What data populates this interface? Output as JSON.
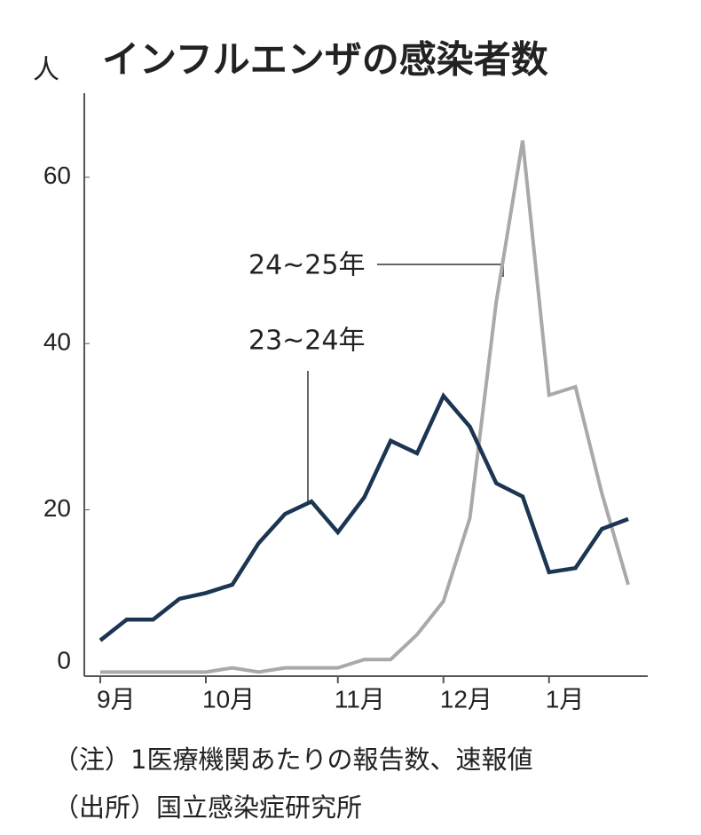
{
  "chart_data": {
    "type": "line",
    "title": "インフルエンザの感染者数",
    "ylabel": "人",
    "categories": [
      "9月",
      null,
      null,
      null,
      "10月",
      null,
      null,
      null,
      null,
      "11月",
      null,
      null,
      null,
      "12月",
      null,
      null,
      null,
      "1月",
      null,
      null,
      null
    ],
    "series": [
      {
        "name": "24~25年",
        "color": "#a9a9a9",
        "values": [
          0.5,
          0.5,
          0.5,
          0.5,
          0.5,
          1,
          0.5,
          1,
          1,
          1,
          2,
          2,
          5,
          9,
          19,
          45,
          64.4,
          33.8,
          34.8,
          22,
          11
        ]
      },
      {
        "name": "23~24年",
        "color": "#1b3552",
        "values": [
          4.3,
          6.8,
          6.8,
          9.3,
          10,
          11,
          16,
          19.5,
          21,
          17.3,
          21.5,
          28.3,
          26.8,
          33.7,
          30,
          23.2,
          21.6,
          12.5,
          13,
          17.7,
          18.9
        ]
      }
    ],
    "ylim": [
      0,
      70
    ],
    "yticks": [
      0,
      20,
      40,
      60
    ],
    "notes": [
      "（注）1医療機関あたりの報告数、速報値",
      "（出所）国立感染症研究所"
    ]
  }
}
